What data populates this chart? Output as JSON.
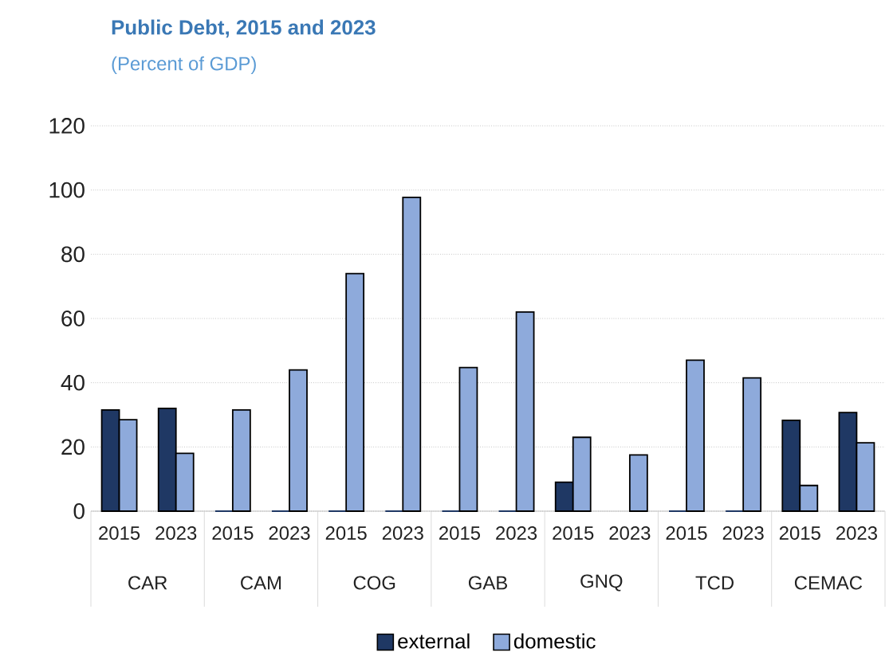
{
  "chart_data": {
    "type": "bar",
    "title": "Public Debt, 2015  and 2023",
    "subtitle": "(Percent of GDP)",
    "categories": [
      "2015",
      "2023",
      "2015",
      "2023",
      "2015",
      "2023",
      "2015",
      "2023",
      "2015",
      "2023",
      "2015",
      "2023",
      "2015",
      "2023"
    ],
    "annotations": [
      "CAR",
      "CAM",
      "COG",
      "GAB",
      "GNQ",
      "TCD",
      "CEMAC"
    ],
    "series": [
      {
        "name": "external",
        "color": "#1f3864",
        "values": [
          31.5,
          32,
          0,
          0,
          0,
          0,
          0,
          0,
          9,
          null,
          0,
          0,
          28.3,
          30.7
        ]
      },
      {
        "name": "domestic",
        "color": "#8eaadb",
        "values": [
          28.5,
          18,
          31.5,
          44,
          74,
          97.7,
          44.7,
          62,
          23,
          17.5,
          47,
          41.5,
          8,
          21.3
        ]
      }
    ],
    "ylim": [
      0,
      120
    ],
    "yticks": [
      0,
      20,
      40,
      60,
      80,
      100,
      120
    ],
    "grid": "y",
    "legend": "bottom"
  }
}
